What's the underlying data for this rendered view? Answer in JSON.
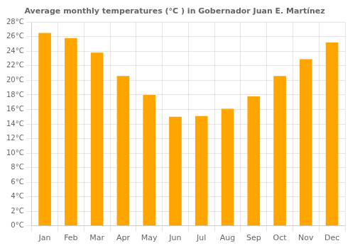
{
  "chart_data": {
    "type": "bar",
    "title": "Average monthly temperatures (°C ) in Gobernador Juan E. Martínez",
    "categories": [
      "Jan",
      "Feb",
      "Mar",
      "Apr",
      "May",
      "Jun",
      "Jul",
      "Aug",
      "Sep",
      "Oct",
      "Nov",
      "Dec"
    ],
    "values": [
      26.5,
      25.8,
      23.8,
      20.6,
      18.0,
      15.0,
      15.1,
      16.1,
      17.8,
      20.6,
      22.9,
      25.2
    ],
    "color": "#FFA500",
    "ylim": [
      0,
      28
    ],
    "yticks": [
      {
        "value": 0,
        "label": "0°C"
      },
      {
        "value": 2,
        "label": "2°C"
      },
      {
        "value": 4,
        "label": "4°C"
      },
      {
        "value": 6,
        "label": "6°C"
      },
      {
        "value": 8,
        "label": "8°C"
      },
      {
        "value": 10,
        "label": "10°C"
      },
      {
        "value": 12,
        "label": "12°C"
      },
      {
        "value": 14,
        "label": "14°C"
      },
      {
        "value": 16,
        "label": "16°C"
      },
      {
        "value": 18,
        "label": "18°C"
      },
      {
        "value": 20,
        "label": "20°C"
      },
      {
        "value": 22,
        "label": "22°C"
      },
      {
        "value": 24,
        "label": "24°C"
      },
      {
        "value": 26,
        "label": "26°C"
      },
      {
        "value": 28,
        "label": "28°C"
      }
    ],
    "grid": true
  }
}
